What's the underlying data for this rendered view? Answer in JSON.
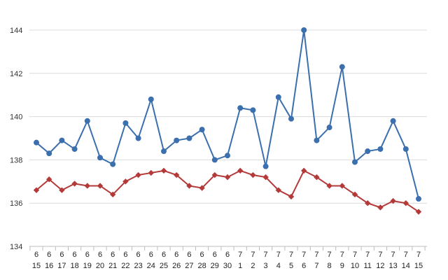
{
  "chart_data": {
    "type": "line",
    "title": "",
    "xlabel": "",
    "ylabel": "",
    "ylim": [
      134,
      144
    ],
    "yticks": [
      134,
      136,
      138,
      140,
      142,
      144
    ],
    "grid": true,
    "legend": "none",
    "categories": [
      {
        "month": "6",
        "day": "15"
      },
      {
        "month": "6",
        "day": "16"
      },
      {
        "month": "6",
        "day": "17"
      },
      {
        "month": "6",
        "day": "18"
      },
      {
        "month": "6",
        "day": "19"
      },
      {
        "month": "6",
        "day": "20"
      },
      {
        "month": "6",
        "day": "21"
      },
      {
        "month": "6",
        "day": "22"
      },
      {
        "month": "6",
        "day": "23"
      },
      {
        "month": "6",
        "day": "24"
      },
      {
        "month": "6",
        "day": "25"
      },
      {
        "month": "6",
        "day": "26"
      },
      {
        "month": "6",
        "day": "27"
      },
      {
        "month": "6",
        "day": "28"
      },
      {
        "month": "6",
        "day": "29"
      },
      {
        "month": "6",
        "day": "30"
      },
      {
        "month": "7",
        "day": "1"
      },
      {
        "month": "7",
        "day": "2"
      },
      {
        "month": "7",
        "day": "3"
      },
      {
        "month": "7",
        "day": "4"
      },
      {
        "month": "7",
        "day": "5"
      },
      {
        "month": "7",
        "day": "6"
      },
      {
        "month": "7",
        "day": "7"
      },
      {
        "month": "7",
        "day": "8"
      },
      {
        "month": "7",
        "day": "9"
      },
      {
        "month": "7",
        "day": "10"
      },
      {
        "month": "7",
        "day": "11"
      },
      {
        "month": "7",
        "day": "12"
      },
      {
        "month": "7",
        "day": "13"
      },
      {
        "month": "7",
        "day": "14"
      },
      {
        "month": "7",
        "day": "15"
      }
    ],
    "series": [
      {
        "color": "#3b6fad",
        "marker": "circle",
        "values": [
          138.8,
          138.3,
          138.9,
          138.5,
          139.8,
          138.1,
          137.8,
          139.7,
          139.0,
          140.8,
          138.4,
          138.9,
          139.0,
          139.4,
          138.0,
          138.2,
          140.4,
          140.3,
          137.7,
          140.9,
          139.9,
          144.0,
          138.9,
          139.5,
          142.3,
          137.9,
          138.4,
          138.5,
          139.8,
          138.5,
          136.2
        ]
      },
      {
        "color": "#b43a3a",
        "marker": "diamond",
        "values": [
          136.6,
          137.1,
          136.6,
          136.9,
          136.8,
          136.8,
          136.4,
          137.0,
          137.3,
          137.4,
          137.5,
          137.3,
          136.8,
          136.7,
          137.3,
          137.2,
          137.5,
          137.3,
          137.2,
          136.6,
          136.3,
          137.5,
          137.2,
          136.8,
          136.8,
          136.4,
          136.0,
          135.8,
          136.1,
          136.0,
          135.6
        ]
      }
    ]
  }
}
